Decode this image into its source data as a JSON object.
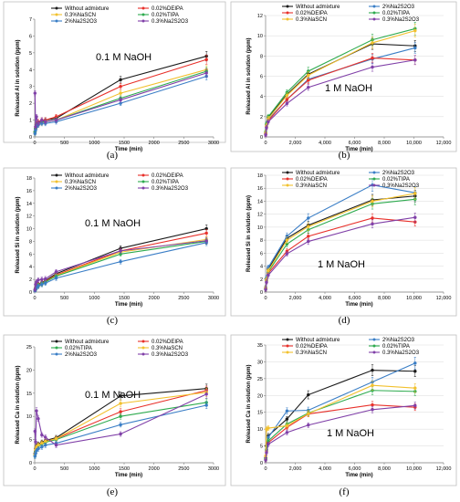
{
  "series_colors": {
    "Without admixture": "#1a1a1a",
    "0.02%DEIPA": "#e8302a",
    "0.3%NaSCN": "#f2c12e",
    "0.02%TIPA": "#2eab4f",
    "2%Na2S2O3": "#3a7ec6",
    "0.3%Na2S2O3": "#8040a8"
  },
  "chart_data": [
    {
      "type": "line",
      "panel": "(a)",
      "annotation": "0.1 M NaOH",
      "xlabel": "Time (min)",
      "ylabel": "Released Al in solution (ppm)",
      "xlim": [
        0,
        3000
      ],
      "ylim": [
        0,
        7
      ],
      "xticks": [
        0,
        500,
        1000,
        1500,
        2000,
        2500,
        3000
      ],
      "yticks": [
        0,
        1,
        2,
        3,
        4,
        5,
        6,
        7
      ],
      "grid": false,
      "legend": [
        "Without admixture",
        "0.02%DEIPA",
        "0.3%NaSCN",
        "0.02%TIPA",
        "2%Na2S2O3",
        "0.3%Na2S2O3"
      ],
      "legend_columns": 2,
      "x": [
        5,
        15,
        30,
        60,
        120,
        180,
        360,
        1440,
        2880
      ],
      "series": [
        {
          "name": "Without admixture",
          "values": [
            0.3,
            0.5,
            0.7,
            0.8,
            0.9,
            1.0,
            1.1,
            3.4,
            4.8
          ]
        },
        {
          "name": "0.02%DEIPA",
          "values": [
            0.3,
            0.6,
            0.8,
            0.9,
            1.0,
            1.0,
            1.2,
            3.0,
            4.6
          ]
        },
        {
          "name": "0.3%NaSCN",
          "values": [
            0.2,
            0.5,
            0.6,
            0.7,
            0.8,
            0.9,
            1.0,
            2.6,
            4.0
          ]
        },
        {
          "name": "0.02%TIPA",
          "values": [
            0.3,
            0.5,
            0.7,
            0.8,
            0.9,
            0.9,
            1.0,
            2.3,
            3.9
          ]
        },
        {
          "name": "2%Na2S2O3",
          "values": [
            0.2,
            0.4,
            0.6,
            0.7,
            0.8,
            0.8,
            0.9,
            2.0,
            3.6
          ]
        },
        {
          "name": "0.3%Na2S2O3",
          "values": [
            2.6,
            0.6,
            1.2,
            0.8,
            1.0,
            0.9,
            1.0,
            2.2,
            3.8
          ]
        }
      ]
    },
    {
      "type": "line",
      "panel": "(b)",
      "annotation": "1 M NaOH",
      "xlabel": "Time (min)",
      "ylabel": "Released Al in solution (ppm)",
      "xlim": [
        0,
        12000
      ],
      "ylim": [
        0,
        12
      ],
      "xticks": [
        0,
        2000,
        4000,
        6000,
        8000,
        10000,
        12000
      ],
      "xtick_labels": [
        "0",
        "2,000",
        "4,000",
        "6,000",
        "8,000",
        "10,000",
        "12,000"
      ],
      "yticks": [
        0,
        2,
        4,
        6,
        8,
        10,
        12
      ],
      "grid": true,
      "legend": [
        "Without admixture",
        "2%Na2S2O3",
        "0.02%DEIPA",
        "0.02%TIPA",
        "0.3%NaSCN",
        "0.3%Na2S2O3"
      ],
      "legend_columns": 2,
      "x": [
        5,
        60,
        180,
        1440,
        2880,
        7200,
        10080
      ],
      "series": [
        {
          "name": "Without admixture",
          "values": [
            0.4,
            1.2,
            1.9,
            4.2,
            6.2,
            9.2,
            9.0
          ]
        },
        {
          "name": "2%Na2S2O3",
          "values": [
            0.3,
            1.0,
            1.7,
            3.7,
            5.7,
            7.7,
            8.8
          ]
        },
        {
          "name": "0.02%DEIPA",
          "values": [
            0.3,
            1.0,
            1.6,
            3.7,
            5.6,
            7.8,
            7.6
          ]
        },
        {
          "name": "0.02%TIPA",
          "values": [
            0.5,
            1.3,
            2.0,
            4.4,
            6.5,
            9.6,
            10.7
          ]
        },
        {
          "name": "0.3%NaSCN",
          "values": [
            0.4,
            1.1,
            1.8,
            4.1,
            6.1,
            9.3,
            10.5
          ]
        },
        {
          "name": "0.3%Na2S2O3",
          "values": [
            0.2,
            0.9,
            1.5,
            3.3,
            4.9,
            6.9,
            7.6
          ]
        }
      ]
    },
    {
      "type": "line",
      "panel": "(c)",
      "annotation": "0.1 M NaOH",
      "xlabel": "Time (min)",
      "ylabel": "Released Si in solution (ppm)",
      "xlim": [
        0,
        3000
      ],
      "ylim": [
        0,
        18
      ],
      "xticks": [
        0,
        500,
        1000,
        1500,
        2000,
        2500,
        3000
      ],
      "yticks": [
        0,
        2,
        4,
        6,
        8,
        10,
        12,
        14,
        16,
        18
      ],
      "grid": false,
      "legend": [
        "Without admixture",
        "0.02%DEIPA",
        "0.3%NaSCN",
        "0.02%TIPA",
        "2%Na2S2O3",
        "0.3%Na2S2O3"
      ],
      "legend_columns": 2,
      "x": [
        5,
        15,
        30,
        60,
        120,
        180,
        360,
        1440,
        2880
      ],
      "series": [
        {
          "name": "Without admixture",
          "values": [
            0.3,
            0.6,
            0.9,
            1.2,
            1.5,
            1.8,
            2.9,
            6.9,
            10.0
          ]
        },
        {
          "name": "0.02%DEIPA",
          "values": [
            0.3,
            0.6,
            0.9,
            1.1,
            1.4,
            1.7,
            2.7,
            6.5,
            9.3
          ]
        },
        {
          "name": "0.3%NaSCN",
          "values": [
            0.3,
            0.5,
            0.8,
            1.0,
            1.3,
            1.6,
            2.6,
            6.3,
            8.3
          ]
        },
        {
          "name": "0.02%TIPA",
          "values": [
            0.2,
            0.5,
            0.8,
            1.0,
            1.3,
            1.6,
            2.5,
            6.0,
            8.0
          ]
        },
        {
          "name": "2%Na2S2O3",
          "values": [
            0.2,
            0.4,
            0.7,
            0.9,
            1.2,
            1.4,
            2.2,
            4.8,
            7.8
          ]
        },
        {
          "name": "0.3%Na2S2O3",
          "values": [
            0.4,
            1.2,
            1.6,
            1.9,
            2.0,
            2.1,
            3.2,
            6.5,
            8.1
          ]
        }
      ]
    },
    {
      "type": "line",
      "panel": "(d)",
      "annotation": "1 M NaOH",
      "xlabel": "Time (min)",
      "ylabel": "Released Si in solution (ppm)",
      "xlim": [
        0,
        12000
      ],
      "ylim": [
        0,
        18
      ],
      "xticks": [
        0,
        2000,
        4000,
        6000,
        8000,
        10000,
        12000
      ],
      "xtick_labels": [
        "0",
        "2,000",
        "4,000",
        "6,000",
        "8,000",
        "10,000",
        "12,000"
      ],
      "yticks": [
        0,
        2,
        4,
        6,
        8,
        10,
        12,
        14,
        16,
        18
      ],
      "grid": true,
      "legend": [
        "Without admixture",
        "2%Na2S2O3",
        "0.02%DEIPA",
        "0.02%TIPA",
        "0.3%NaSCN",
        "0.3%Na2S2O3"
      ],
      "legend_columns": 2,
      "x": [
        5,
        60,
        180,
        1440,
        2880,
        7200,
        10080
      ],
      "series": [
        {
          "name": "Without admixture",
          "values": [
            0.6,
            2.0,
            3.5,
            8.3,
            10.3,
            14.2,
            14.8
          ]
        },
        {
          "name": "2%Na2S2O3",
          "values": [
            0.7,
            2.2,
            3.8,
            8.6,
            11.4,
            16.5,
            15.3
          ]
        },
        {
          "name": "0.02%DEIPA",
          "values": [
            0.5,
            1.7,
            2.9,
            6.3,
            8.6,
            11.4,
            10.8
          ]
        },
        {
          "name": "0.02%TIPA",
          "values": [
            0.5,
            1.8,
            3.1,
            7.4,
            9.6,
            13.6,
            14.3
          ]
        },
        {
          "name": "0.3%NaSCN",
          "values": [
            0.6,
            1.9,
            3.3,
            8.0,
            10.1,
            14.0,
            15.2
          ]
        },
        {
          "name": "0.3%Na2S2O3",
          "values": [
            0.4,
            1.5,
            2.6,
            5.9,
            7.8,
            10.5,
            11.5
          ]
        }
      ]
    },
    {
      "type": "line",
      "panel": "(e)",
      "annotation": "0.1 M NaOH",
      "xlabel": "Time (min)",
      "ylabel": "Released Ca in solution (ppm)",
      "xlim": [
        0,
        3000
      ],
      "ylim": [
        0,
        25
      ],
      "xticks": [
        0,
        500,
        1000,
        1500,
        2000,
        2500,
        3000
      ],
      "yticks": [
        0,
        5,
        10,
        15,
        20,
        25
      ],
      "grid": false,
      "legend": [
        "Without admixture",
        "0.02%DEIPA",
        "0.02%TIPA",
        "0.3%NaSCN",
        "2%Na2S2O3",
        "0.3%Na2S2O3"
      ],
      "legend_columns": 2,
      "x": [
        5,
        15,
        30,
        60,
        120,
        180,
        360,
        1440,
        2880
      ],
      "series": [
        {
          "name": "Without admixture",
          "values": [
            2.0,
            3.0,
            3.6,
            4.0,
            4.4,
            4.8,
            5.4,
            14.4,
            16.0
          ]
        },
        {
          "name": "0.02%DEIPA",
          "values": [
            1.8,
            2.6,
            3.2,
            3.8,
            4.2,
            4.6,
            5.2,
            11.0,
            15.6
          ]
        },
        {
          "name": "0.02%TIPA",
          "values": [
            1.6,
            2.4,
            3.0,
            3.6,
            4.0,
            4.4,
            5.0,
            10.0,
            13.0
          ]
        },
        {
          "name": "0.3%NaSCN",
          "values": [
            1.8,
            2.8,
            3.4,
            3.8,
            4.2,
            4.6,
            5.2,
            12.8,
            15.2
          ]
        },
        {
          "name": "2%Na2S2O3",
          "values": [
            1.4,
            2.0,
            2.6,
            3.0,
            3.4,
            3.8,
            4.2,
            8.2,
            12.4
          ]
        },
        {
          "name": "0.3%Na2S2O3",
          "values": [
            6.8,
            4.5,
            11.2,
            9.5,
            6.0,
            5.5,
            3.8,
            6.2,
            14.8
          ]
        }
      ]
    },
    {
      "type": "line",
      "panel": "(f)",
      "annotation": "1 M NaOH",
      "xlabel": "Time (min)",
      "ylabel": "Released Ca in solution (ppm)",
      "xlim": [
        0,
        12000
      ],
      "ylim": [
        0,
        35
      ],
      "xticks": [
        0,
        2000,
        4000,
        6000,
        8000,
        10000,
        12000
      ],
      "xtick_labels": [
        "0",
        "2,000",
        "4,000",
        "6,000",
        "8,000",
        "10,000",
        "12,000"
      ],
      "yticks": [
        0,
        5,
        10,
        15,
        20,
        25,
        30,
        35
      ],
      "grid": true,
      "legend": [
        "Without admixture",
        "2%Na2S2O3",
        "0.02%DEIPA",
        "0.02%TIPA",
        "0.3%NaSCN",
        "0.3%Na2S2O3"
      ],
      "legend_columns": 2,
      "x": [
        5,
        60,
        180,
        1440,
        2880,
        7200,
        10080
      ],
      "series": [
        {
          "name": "Without admixture",
          "values": [
            1.5,
            5.0,
            8.0,
            13.0,
            20.2,
            27.5,
            27.2
          ]
        },
        {
          "name": "2%Na2S2O3",
          "values": [
            1.2,
            4.0,
            7.5,
            15.4,
            15.6,
            24.0,
            29.6
          ]
        },
        {
          "name": "0.02%DEIPA",
          "values": [
            1.0,
            3.5,
            6.0,
            10.5,
            14.5,
            17.2,
            16.5
          ]
        },
        {
          "name": "0.02%TIPA",
          "values": [
            1.1,
            3.8,
            6.5,
            11.5,
            14.8,
            21.5,
            21.2
          ]
        },
        {
          "name": "0.3%NaSCN",
          "values": [
            2.0,
            10.0,
            10.3,
            11.0,
            14.6,
            23.0,
            22.2
          ]
        },
        {
          "name": "0.3%Na2S2O3",
          "values": [
            0.8,
            3.0,
            5.5,
            9.0,
            11.2,
            15.8,
            17.0
          ]
        }
      ]
    }
  ]
}
